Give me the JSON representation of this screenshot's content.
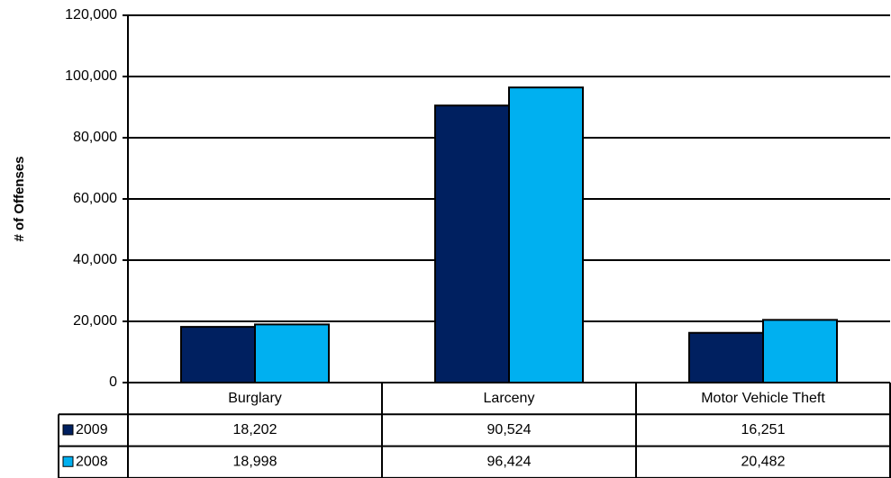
{
  "chart_data": {
    "type": "bar",
    "y_label": "# of Offenses",
    "categories": [
      "Burglary",
      "Larceny",
      "Motor Vehicle Theft"
    ],
    "series": [
      {
        "name": "2009",
        "color": "#002060",
        "values": [
          18202,
          90524,
          16251
        ],
        "value_labels": [
          "18,202",
          "90,524",
          "16,251"
        ]
      },
      {
        "name": "2008",
        "color": "#00b0f0",
        "values": [
          18998,
          96424,
          20482
        ],
        "value_labels": [
          "18,998",
          "96,424",
          "20,482"
        ]
      }
    ],
    "ylim": [
      0,
      120000
    ],
    "yticks": [
      0,
      {
        "value": 20000,
        "label": "20,000"
      },
      {
        "value": 40000,
        "label": "40,000"
      },
      {
        "value": 60000,
        "label": "60,000"
      },
      {
        "value": 80000,
        "label": "80,000"
      },
      {
        "value": 100000,
        "label": "100,000"
      },
      {
        "value": 120000,
        "label": "120,000"
      }
    ],
    "grid": true
  }
}
